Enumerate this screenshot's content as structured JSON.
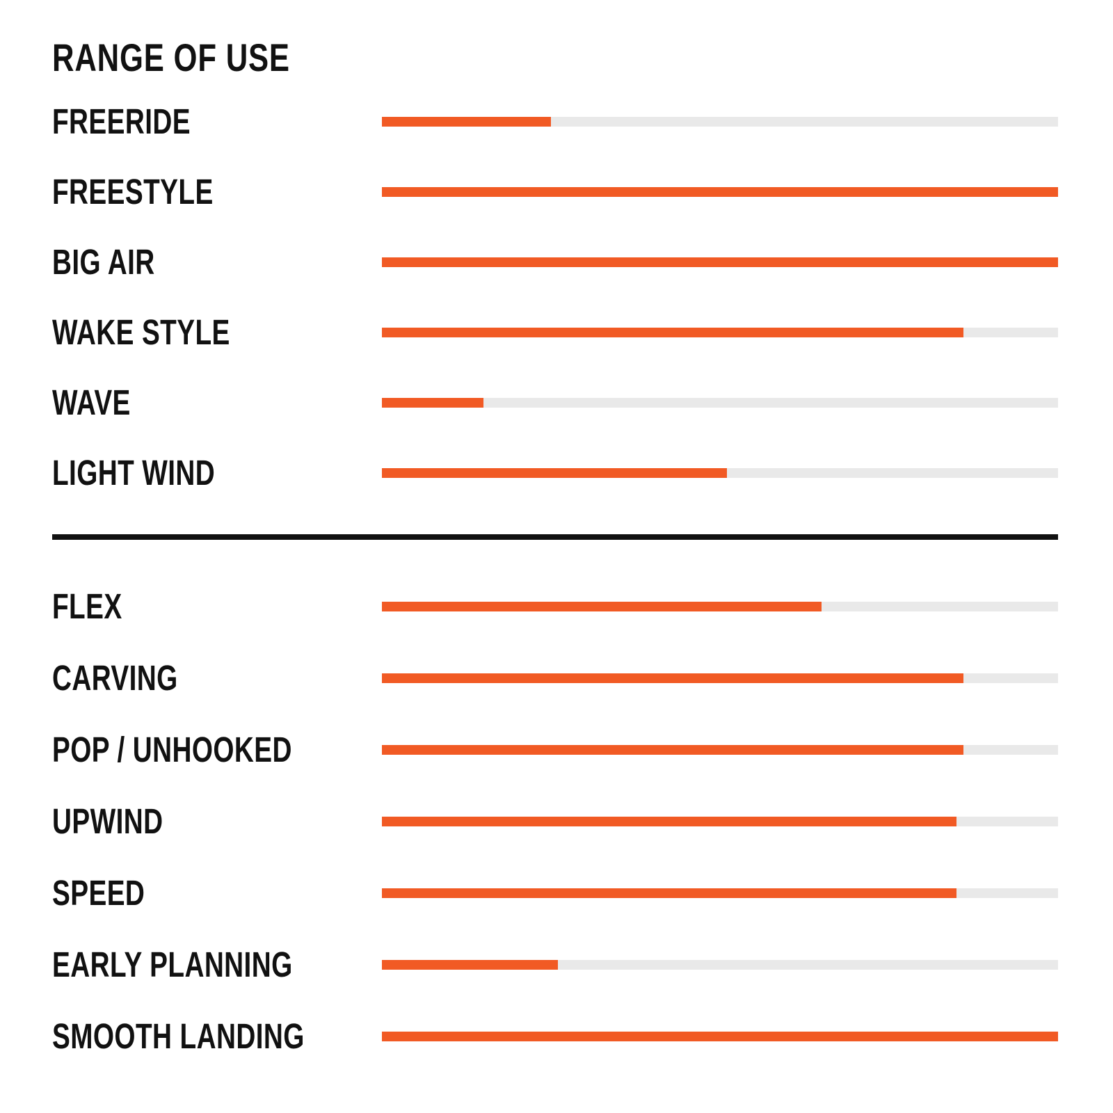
{
  "page_title": "RANGE OF USE",
  "colors": {
    "bar_fill": "#F15A24",
    "bar_track": "#E9E9E9",
    "text": "#111111",
    "divider": "#111111",
    "background": "#FFFFFF"
  },
  "chart_data": {
    "type": "bar",
    "orientation": "horizontal",
    "title": "RANGE OF USE",
    "value_unit": "percent_of_full_scale",
    "value_range": [
      0,
      100
    ],
    "grid": false,
    "legend": false,
    "axis_labels": false,
    "sections": [
      {
        "name": "range_of_use",
        "categories": [
          "FREERIDE",
          "FREESTYLE",
          "BIG AIR",
          "WAKE STYLE",
          "WAVE",
          "LIGHT WIND"
        ],
        "values": [
          25,
          100,
          100,
          86,
          15,
          51
        ]
      },
      {
        "name": "board_characteristics",
        "categories": [
          "FLEX",
          "CARVING",
          "POP / UNHOOKED",
          "UPWIND",
          "SPEED",
          "EARLY PLANNING",
          "SMOOTH LANDING"
        ],
        "values": [
          65,
          86,
          86,
          85,
          85,
          26,
          100
        ]
      }
    ]
  }
}
